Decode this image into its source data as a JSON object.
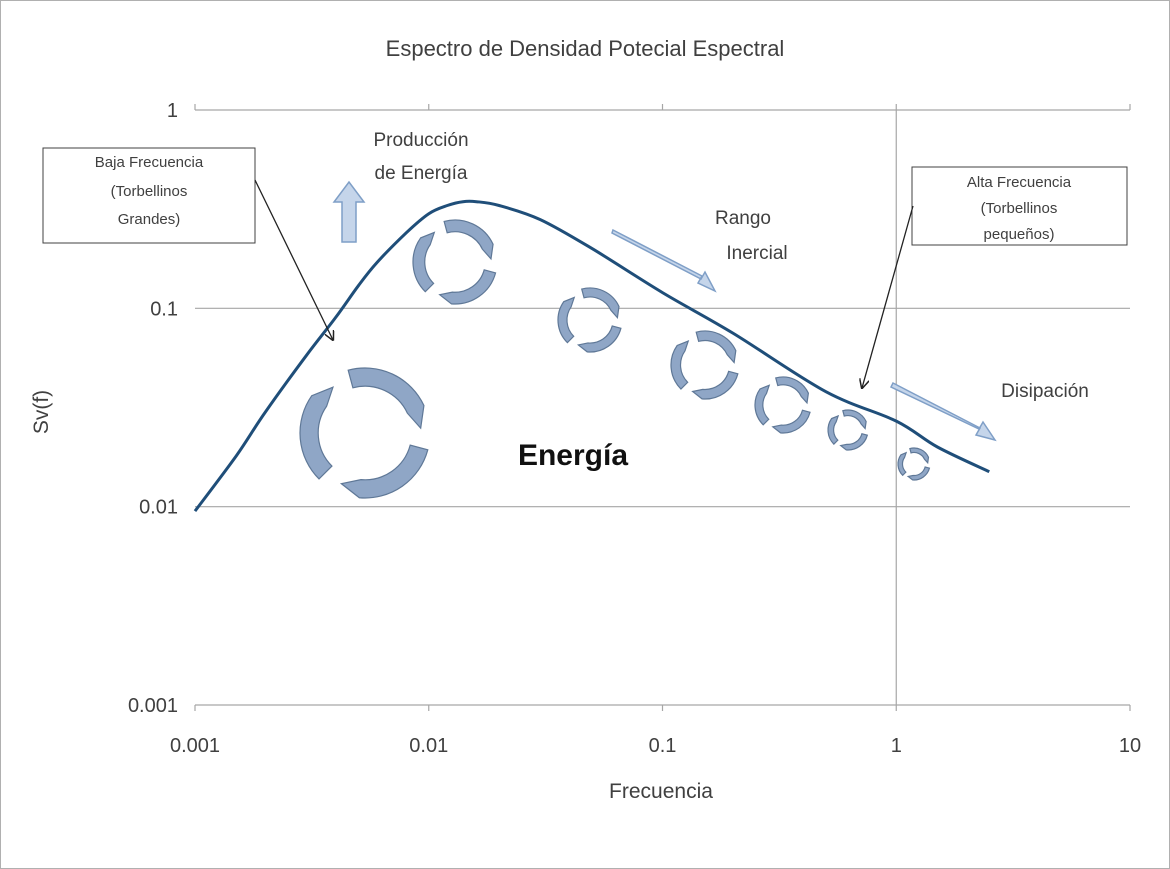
{
  "chart_data": {
    "type": "line",
    "title": "Espectro de Densidad Potecial Espectral",
    "xlabel": "Frecuencia",
    "ylabel": "Sv(f)",
    "x_scale": "log",
    "y_scale": "log",
    "xlim": [
      0.001,
      10
    ],
    "ylim": [
      0.001,
      1
    ],
    "x_ticks": [
      "0.001",
      "0.01",
      "0.1",
      "1",
      "10"
    ],
    "y_ticks": [
      "0.001",
      "0.01",
      "0.1",
      "1"
    ],
    "grid": "horizontal",
    "reference_line_x": 1,
    "series": [
      {
        "x": [
          0.001,
          0.0015,
          0.002,
          0.003,
          0.004,
          0.005,
          0.006,
          0.008,
          0.01,
          0.012,
          0.014,
          0.016,
          0.02,
          0.03,
          0.05,
          0.1,
          0.2,
          0.5,
          1,
          1.5,
          2.5
        ],
        "y": [
          0.0095,
          0.018,
          0.03,
          0.058,
          0.09,
          0.13,
          0.17,
          0.24,
          0.3,
          0.33,
          0.345,
          0.345,
          0.33,
          0.28,
          0.2,
          0.12,
          0.075,
          0.038,
          0.027,
          0.02,
          0.015
        ]
      }
    ],
    "annotations": {
      "produccion": [
        "Producción",
        "de Energía"
      ],
      "rango": [
        "Rango",
        "Inercial"
      ],
      "disipacion": "Disipación",
      "energia": "Energía",
      "baja": [
        "Baja Frecuencia",
        "(Torbellinos",
        "Grandes)"
      ],
      "alta": [
        "Alta Frecuencia",
        "(Torbellinos",
        "pequeños)"
      ]
    },
    "colors": {
      "curve": "#1f4e79",
      "arrow_fill": "#c5d5ea",
      "arrow_stroke": "#7f9fc7",
      "eddy_fill": "#8fa6c6",
      "eddy_stroke": "#5f7897"
    }
  }
}
